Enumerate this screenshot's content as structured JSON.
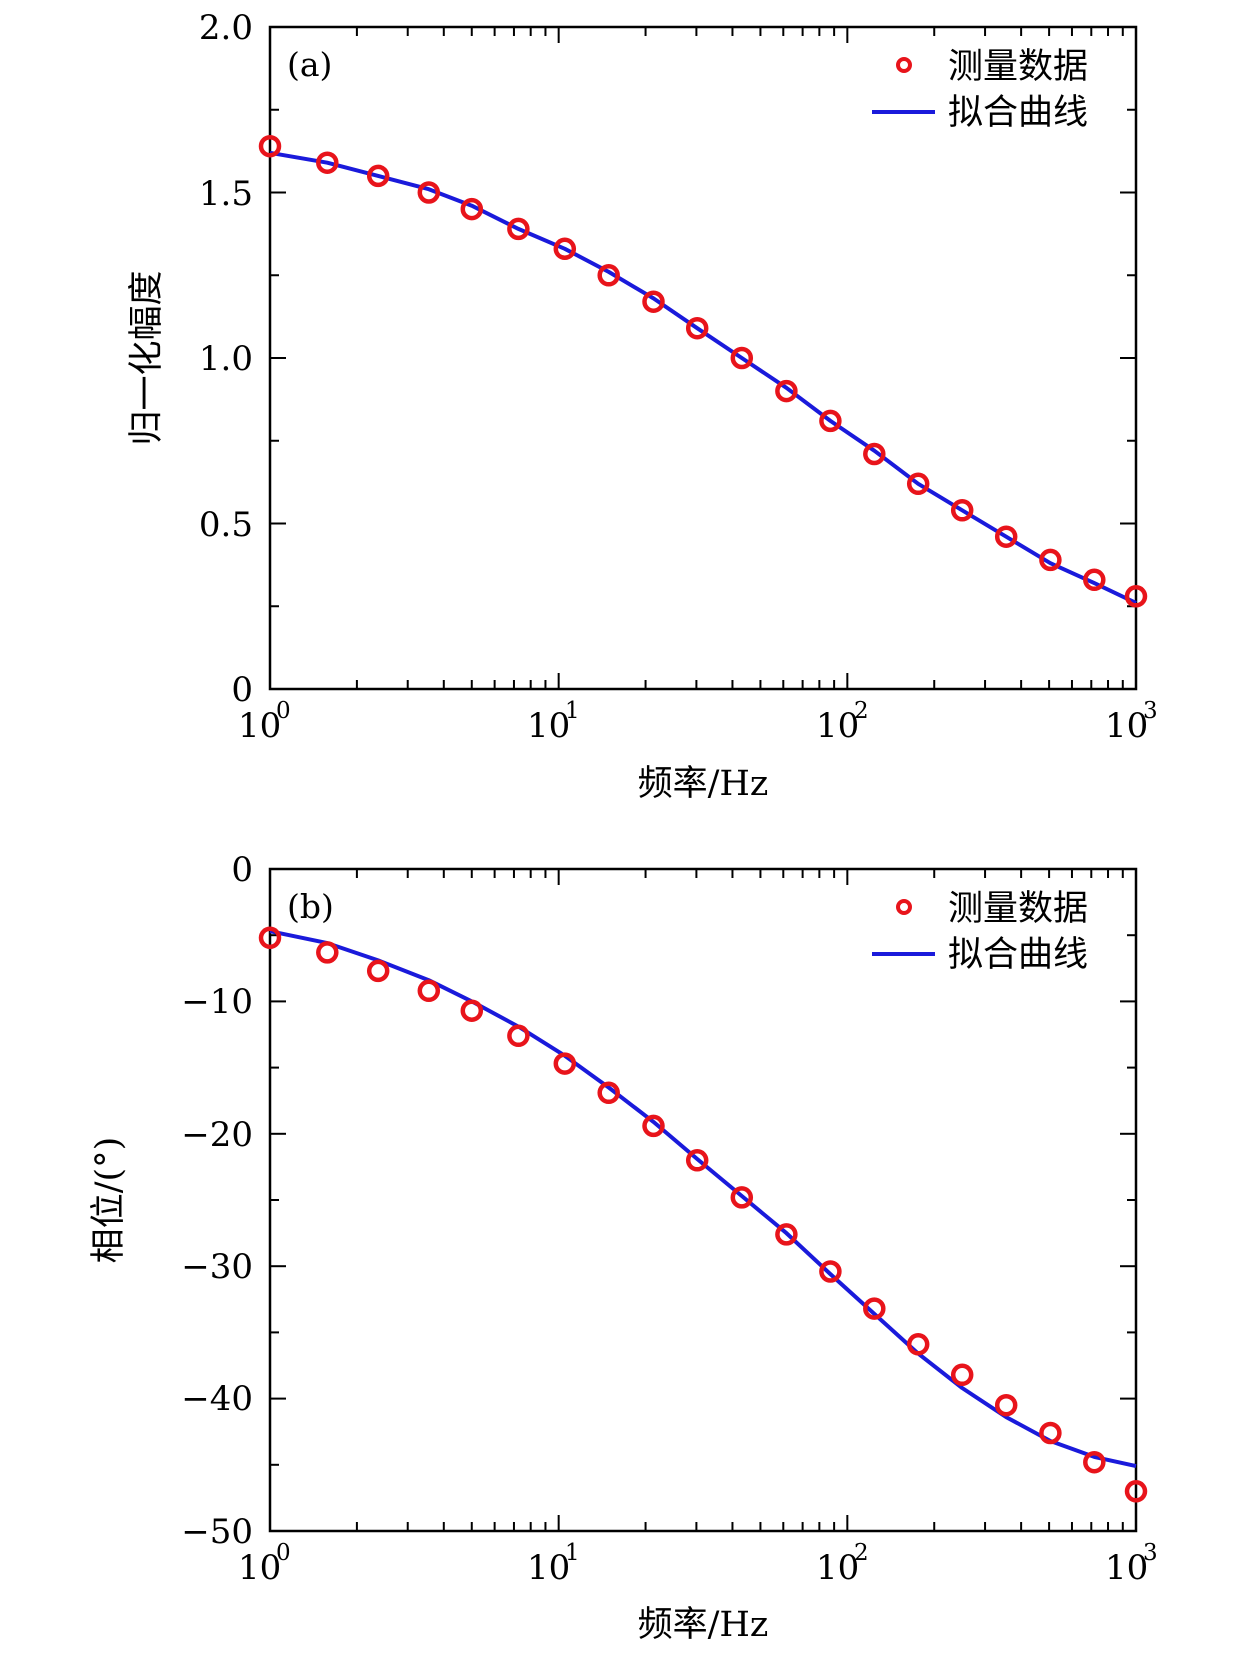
{
  "chart_data": [
    {
      "type": "scatter+line",
      "panel_label": "(a)",
      "xlabel": "频率/Hz",
      "ylabel": "归一化幅度",
      "xscale": "log",
      "xlim": [
        1,
        1000
      ],
      "ylim": [
        0,
        2.0
      ],
      "x_tick_bases": [
        "10",
        "10",
        "10",
        "10"
      ],
      "x_tick_exponents": [
        "0",
        "1",
        "2",
        "3"
      ],
      "y_ticks": [
        0,
        0.5,
        1.0,
        1.5,
        2.0
      ],
      "y_tick_labels": [
        "0",
        "0.5",
        "1.0",
        "1.5",
        "2.0"
      ],
      "legend": {
        "position": "top-right",
        "entries": [
          "测量数据",
          "拟合曲线"
        ]
      },
      "series": [
        {
          "name": "测量数据",
          "style": "open-circle",
          "color": "#e8141b",
          "x": [
            1,
            1.58,
            2.37,
            3.55,
            5.0,
            7.25,
            10.5,
            14.9,
            21.3,
            30.2,
            43.1,
            61.5,
            87.4,
            124,
            176,
            250,
            355,
            505,
            717,
            1000
          ],
          "y": [
            1.64,
            1.59,
            1.55,
            1.5,
            1.45,
            1.39,
            1.33,
            1.25,
            1.17,
            1.09,
            1.0,
            0.9,
            0.81,
            0.71,
            0.62,
            0.54,
            0.46,
            0.39,
            0.33,
            0.28
          ]
        },
        {
          "name": "拟合曲线",
          "style": "line",
          "color": "#1a1adb",
          "x": [
            1,
            1.58,
            2.37,
            3.55,
            5.0,
            7.25,
            10.5,
            14.9,
            21.3,
            30.2,
            43.1,
            61.5,
            87.4,
            124,
            176,
            250,
            355,
            505,
            717,
            1000
          ],
          "y": [
            1.62,
            1.59,
            1.55,
            1.51,
            1.46,
            1.39,
            1.33,
            1.26,
            1.18,
            1.09,
            1.0,
            0.91,
            0.81,
            0.72,
            0.62,
            0.54,
            0.46,
            0.38,
            0.32,
            0.26
          ]
        }
      ]
    },
    {
      "type": "scatter+line",
      "panel_label": "(b)",
      "xlabel": "频率/Hz",
      "ylabel": "相位/(°)",
      "xscale": "log",
      "xlim": [
        1,
        1000
      ],
      "ylim": [
        -50,
        0
      ],
      "x_tick_bases": [
        "10",
        "10",
        "10",
        "10"
      ],
      "x_tick_exponents": [
        "0",
        "1",
        "2",
        "3"
      ],
      "y_ticks": [
        0,
        -10,
        -20,
        -30,
        -40,
        -50
      ],
      "y_tick_labels": [
        "0",
        "−10",
        "−20",
        "−30",
        "−40",
        "−50"
      ],
      "legend": {
        "position": "top-right",
        "entries": [
          "测量数据",
          "拟合曲线"
        ]
      },
      "series": [
        {
          "name": "测量数据",
          "style": "open-circle",
          "color": "#e8141b",
          "x": [
            1,
            1.58,
            2.37,
            3.55,
            5.0,
            7.25,
            10.5,
            14.9,
            21.3,
            30.2,
            43.1,
            61.5,
            87.4,
            124,
            176,
            250,
            355,
            505,
            717,
            1000
          ],
          "y": [
            -5.2,
            -6.3,
            -7.7,
            -9.2,
            -10.7,
            -12.6,
            -14.7,
            -16.9,
            -19.4,
            -22.0,
            -24.8,
            -27.6,
            -30.4,
            -33.2,
            -35.9,
            -38.2,
            -40.5,
            -42.6,
            -44.8,
            -47.0
          ]
        },
        {
          "name": "拟合曲线",
          "style": "line",
          "color": "#1a1adb",
          "x": [
            1,
            1.58,
            2.37,
            3.55,
            5.0,
            7.25,
            10.5,
            14.9,
            21.3,
            30.2,
            43.1,
            61.5,
            87.4,
            124,
            176,
            250,
            355,
            505,
            717,
            1000
          ],
          "y": [
            -4.7,
            -5.6,
            -6.9,
            -8.4,
            -10.0,
            -11.9,
            -14.1,
            -16.5,
            -19.1,
            -21.9,
            -24.7,
            -27.5,
            -30.6,
            -33.6,
            -36.6,
            -39.2,
            -41.4,
            -43.2,
            -44.4,
            -45.1
          ]
        }
      ]
    }
  ]
}
